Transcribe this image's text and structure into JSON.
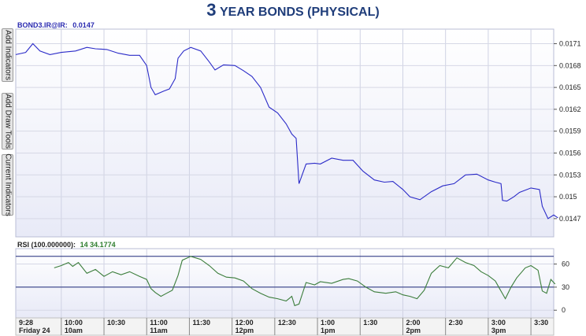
{
  "title": {
    "main": "3",
    "rest": "YEAR BONDS (PHYSICAL)"
  },
  "sidebar": {
    "tabs": [
      {
        "label": "Add Indicators"
      },
      {
        "label": "Add Draw Tools"
      },
      {
        "label": "Current Indicators"
      }
    ]
  },
  "legend": {
    "price": {
      "label": "BOND3.IR@IR:",
      "value": "0.0147"
    },
    "rsi": {
      "label": "RSI (100.000000):",
      "period": "14",
      "value": "34.1774"
    }
  },
  "colors": {
    "price_line": "#2b2bc8",
    "rsi_line": "#3b7d3b",
    "band": "#1f2a7a",
    "panel_bg": "#eef0fa"
  },
  "chart_data": [
    {
      "type": "line",
      "title": "BOND3.IR@IR",
      "x_range": [
        "09:28",
        "15:46"
      ],
      "ylim": [
        0.01445,
        0.0173
      ],
      "y_ticks": [
        "0.0171",
        "0.0168",
        "0.0165",
        "0.0162",
        "0.0159",
        "0.0156",
        "0.0153",
        "0.015",
        "0.0147"
      ],
      "series": [
        {
          "name": "BOND3.IR@IR",
          "points": [
            [
              "09:28",
              0.01695
            ],
            [
              "09:35",
              0.01698
            ],
            [
              "09:40",
              0.0171
            ],
            [
              "09:45",
              0.017
            ],
            [
              "09:52",
              0.01695
            ],
            [
              "10:00",
              0.01698
            ],
            [
              "10:10",
              0.017
            ],
            [
              "10:18",
              0.01705
            ],
            [
              "10:24",
              0.01703
            ],
            [
              "10:32",
              0.01702
            ],
            [
              "10:40",
              0.01697
            ],
            [
              "10:48",
              0.01694
            ],
            [
              "10:55",
              0.01694
            ],
            [
              "11:00",
              0.0168
            ],
            [
              "11:03",
              0.0165
            ],
            [
              "11:06",
              0.0164
            ],
            [
              "11:12",
              0.01645
            ],
            [
              "11:16",
              0.01648
            ],
            [
              "11:20",
              0.01662
            ],
            [
              "11:22",
              0.0169
            ],
            [
              "11:26",
              0.017
            ],
            [
              "11:31",
              0.01705
            ],
            [
              "11:38",
              0.017
            ],
            [
              "11:44",
              0.01685
            ],
            [
              "11:48",
              0.01674
            ],
            [
              "11:54",
              0.01681
            ],
            [
              "12:02",
              0.0168
            ],
            [
              "12:08",
              0.01673
            ],
            [
              "12:14",
              0.01665
            ],
            [
              "12:20",
              0.0165
            ],
            [
              "12:26",
              0.01623
            ],
            [
              "12:32",
              0.01615
            ],
            [
              "12:38",
              0.016
            ],
            [
              "12:42",
              0.01586
            ],
            [
              "12:45",
              0.0158
            ],
            [
              "12:47",
              0.01518
            ],
            [
              "12:52",
              0.01545
            ],
            [
              "12:58",
              0.01546
            ],
            [
              "13:02",
              0.01545
            ],
            [
              "13:10",
              0.01553
            ],
            [
              "13:18",
              0.0155
            ],
            [
              "13:25",
              0.0155
            ],
            [
              "13:32",
              0.01535
            ],
            [
              "13:40",
              0.01523
            ],
            [
              "13:47",
              0.0152
            ],
            [
              "13:53",
              0.01521
            ],
            [
              "14:00",
              0.0151
            ],
            [
              "14:05",
              0.015
            ],
            [
              "14:12",
              0.01496
            ],
            [
              "14:20",
              0.01507
            ],
            [
              "14:28",
              0.01515
            ],
            [
              "14:36",
              0.01518
            ],
            [
              "14:44",
              0.0153
            ],
            [
              "14:52",
              0.01531
            ],
            [
              "15:00",
              0.01523
            ],
            [
              "15:05",
              0.0152
            ],
            [
              "15:09",
              0.01518
            ],
            [
              "15:10",
              0.01495
            ],
            [
              "15:13",
              0.01494
            ],
            [
              "15:18",
              0.015
            ],
            [
              "15:22",
              0.01506
            ],
            [
              "15:30",
              0.01512
            ],
            [
              "15:36",
              0.0151
            ],
            [
              "15:38",
              0.01487
            ],
            [
              "15:42",
              0.0147
            ],
            [
              "15:46",
              0.01475
            ],
            [
              "15:49",
              0.01471
            ]
          ]
        }
      ]
    },
    {
      "type": "line",
      "title": "RSI (100.000000)",
      "x_range": [
        "09:28",
        "15:46"
      ],
      "ylim": [
        -10,
        80
      ],
      "y_ticks": [
        60,
        30,
        0
      ],
      "bands": [
        70,
        30
      ],
      "series": [
        {
          "name": "RSI",
          "points": [
            [
              "09:55",
              55
            ],
            [
              "10:00",
              58
            ],
            [
              "10:05",
              62
            ],
            [
              "10:08",
              57
            ],
            [
              "10:12",
              62
            ],
            [
              "10:18",
              48
            ],
            [
              "10:24",
              53
            ],
            [
              "10:30",
              44
            ],
            [
              "10:36",
              50
            ],
            [
              "10:42",
              46
            ],
            [
              "10:48",
              50
            ],
            [
              "10:55",
              44
            ],
            [
              "11:00",
              40
            ],
            [
              "11:03",
              28
            ],
            [
              "11:06",
              23
            ],
            [
              "11:10",
              18
            ],
            [
              "11:14",
              22
            ],
            [
              "11:18",
              26
            ],
            [
              "11:22",
              45
            ],
            [
              "11:25",
              65
            ],
            [
              "11:31",
              70
            ],
            [
              "11:38",
              66
            ],
            [
              "11:44",
              58
            ],
            [
              "11:50",
              48
            ],
            [
              "11:56",
              43
            ],
            [
              "12:02",
              42
            ],
            [
              "12:08",
              38
            ],
            [
              "12:14",
              28
            ],
            [
              "12:20",
              22
            ],
            [
              "12:26",
              17
            ],
            [
              "12:32",
              15
            ],
            [
              "12:38",
              12
            ],
            [
              "12:42",
              18
            ],
            [
              "12:44",
              6
            ],
            [
              "12:47",
              8
            ],
            [
              "12:52",
              36
            ],
            [
              "12:58",
              33
            ],
            [
              "13:02",
              37
            ],
            [
              "13:10",
              35
            ],
            [
              "13:18",
              40
            ],
            [
              "13:22",
              41
            ],
            [
              "13:28",
              38
            ],
            [
              "13:34",
              30
            ],
            [
              "13:40",
              24
            ],
            [
              "13:48",
              22
            ],
            [
              "13:55",
              24
            ],
            [
              "14:00",
              20
            ],
            [
              "14:05",
              18
            ],
            [
              "14:10",
              15
            ],
            [
              "14:15",
              26
            ],
            [
              "14:20",
              48
            ],
            [
              "14:26",
              58
            ],
            [
              "14:32",
              55
            ],
            [
              "14:38",
              68
            ],
            [
              "14:44",
              62
            ],
            [
              "14:50",
              58
            ],
            [
              "14:55",
              50
            ],
            [
              "15:00",
              45
            ],
            [
              "15:05",
              38
            ],
            [
              "15:08",
              28
            ],
            [
              "15:12",
              15
            ],
            [
              "15:16",
              30
            ],
            [
              "15:20",
              42
            ],
            [
              "15:26",
              55
            ],
            [
              "15:30",
              58
            ],
            [
              "15:35",
              52
            ],
            [
              "15:38",
              25
            ],
            [
              "15:41",
              22
            ],
            [
              "15:44",
              40
            ],
            [
              "15:47",
              34
            ]
          ]
        }
      ]
    }
  ],
  "time_axis": {
    "ticks": [
      {
        "time": "09:28",
        "label": "9:28",
        "sub": "Friday 24"
      },
      {
        "time": "10:00",
        "label": "10:00",
        "sub": "10am"
      },
      {
        "time": "10:30",
        "label": "10:30",
        "sub": ""
      },
      {
        "time": "11:00",
        "label": "11:00",
        "sub": "11am"
      },
      {
        "time": "11:30",
        "label": "11:30",
        "sub": ""
      },
      {
        "time": "12:00",
        "label": "12:00",
        "sub": "12pm"
      },
      {
        "time": "12:30",
        "label": "12:30",
        "sub": ""
      },
      {
        "time": "13:00",
        "label": "1:00",
        "sub": "1pm"
      },
      {
        "time": "13:30",
        "label": "1:30",
        "sub": ""
      },
      {
        "time": "14:00",
        "label": "2:00",
        "sub": "2pm"
      },
      {
        "time": "14:30",
        "label": "2:30",
        "sub": ""
      },
      {
        "time": "15:00",
        "label": "3:00",
        "sub": "3pm"
      },
      {
        "time": "15:30",
        "label": "3:30",
        "sub": ""
      }
    ]
  }
}
